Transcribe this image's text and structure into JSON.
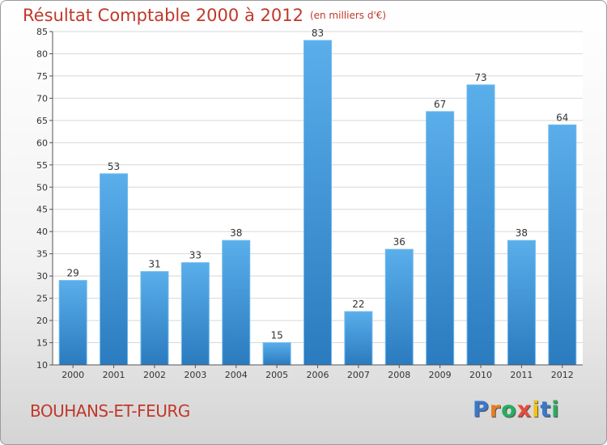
{
  "chart_data": {
    "type": "bar",
    "title": "Résultat Comptable 2000 à 2012",
    "subtitle": "(en milliers d'€)",
    "categories": [
      "2000",
      "2001",
      "2002",
      "2003",
      "2004",
      "2005",
      "2006",
      "2007",
      "2008",
      "2009",
      "2010",
      "2011",
      "2012"
    ],
    "values": [
      29,
      53,
      31,
      33,
      38,
      15,
      83,
      22,
      36,
      67,
      73,
      38,
      64
    ],
    "ylim": [
      10,
      85
    ],
    "yticks": [
      10,
      15,
      20,
      25,
      30,
      35,
      40,
      45,
      50,
      55,
      60,
      65,
      70,
      75,
      80,
      85
    ],
    "xlabel": "",
    "ylabel": "",
    "grid": true,
    "bar_color": "#3b8fd4",
    "title_color": "#c0392b"
  },
  "footer": {
    "commune": "BOUHANS-ET-FEURG",
    "logo_letters": [
      "P",
      "r",
      "o",
      "x",
      "i",
      "t",
      "i"
    ],
    "logo_colors": [
      "#3a78c9",
      "#e67e22",
      "#27ae60",
      "#e74c3c",
      "#f1c40f",
      "#3a78c9",
      "#27ae60"
    ]
  }
}
